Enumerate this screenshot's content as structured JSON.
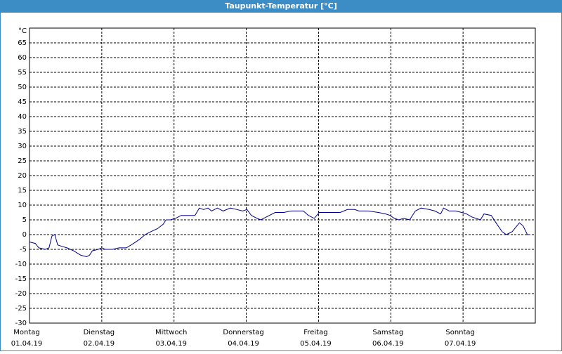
{
  "chart_data": {
    "type": "line",
    "title": "Taupunkt-Temperatur [°C]",
    "y_unit": "°C",
    "xlim": [
      0,
      7
    ],
    "ylim": [
      -30,
      70
    ],
    "yticks": [
      -30,
      -25,
      -20,
      -15,
      -10,
      -5,
      0,
      5,
      10,
      15,
      20,
      25,
      30,
      35,
      40,
      45,
      50,
      55,
      60,
      65
    ],
    "xticks": [
      {
        "value": 0,
        "label": "Montag",
        "date": "01.04.19"
      },
      {
        "value": 1,
        "label": "Dienstag",
        "date": "02.04.19"
      },
      {
        "value": 2,
        "label": "Mittwoch",
        "date": "03.04.19"
      },
      {
        "value": 3,
        "label": "Donnerstag",
        "date": "04.04.19"
      },
      {
        "value": 4,
        "label": "Freitag",
        "date": "05.04.19"
      },
      {
        "value": 5,
        "label": "Samstag",
        "date": "06.04.19"
      },
      {
        "value": 6,
        "label": "Sonntag",
        "date": "07.04.19"
      }
    ],
    "grid": true,
    "x": [
      0,
      0.08,
      0.13,
      0.22,
      0.27,
      0.31,
      0.35,
      0.39,
      0.45,
      0.52,
      0.61,
      0.71,
      0.79,
      0.83,
      0.87,
      0.95,
      1.0,
      1.05,
      1.15,
      1.24,
      1.34,
      1.44,
      1.53,
      1.6,
      1.68,
      1.77,
      1.85,
      1.89,
      1.95,
      2.02,
      2.1,
      2.21,
      2.29,
      2.35,
      2.41,
      2.47,
      2.52,
      2.6,
      2.68,
      2.78,
      2.87,
      2.95,
      3.01,
      3.07,
      3.15,
      3.2,
      3.28,
      3.4,
      3.52,
      3.62,
      3.72,
      3.79,
      3.86,
      3.94,
      4.01,
      4.16,
      4.3,
      4.4,
      4.5,
      4.56,
      4.69,
      4.83,
      4.93,
      4.99,
      5.05,
      5.11,
      5.18,
      5.26,
      5.34,
      5.42,
      5.53,
      5.61,
      5.69,
      5.73,
      5.81,
      5.9,
      5.98,
      6.05,
      6.12,
      6.24,
      6.29,
      6.39,
      6.47,
      6.54,
      6.6,
      6.68,
      6.78,
      6.83,
      6.89,
      6.93
    ],
    "series": [
      {
        "color": "#00008b",
        "values": [
          -2.5,
          -3,
          -4.5,
          -5,
          -4.5,
          -0.5,
          0,
          -3.5,
          -4,
          -4.5,
          -5.5,
          -7,
          -7.5,
          -7,
          -5.5,
          -5,
          -4.5,
          -5,
          -5,
          -4.5,
          -4.5,
          -3,
          -1.5,
          0,
          1,
          2,
          3.5,
          5,
          5,
          5.5,
          6.5,
          6.5,
          6.5,
          9,
          8.5,
          9,
          8,
          9,
          8,
          9,
          8.5,
          8,
          8.5,
          6.5,
          5.5,
          5,
          6,
          7.5,
          7.5,
          8,
          8,
          8,
          6.5,
          5.5,
          7.5,
          7.5,
          7.5,
          8.5,
          8.5,
          8,
          8,
          7.5,
          7,
          6.5,
          5.5,
          5,
          5.5,
          5,
          8,
          9,
          8.5,
          8,
          7,
          9,
          8,
          8,
          7.5,
          7,
          6,
          5,
          7,
          6.5,
          3.5,
          1,
          0,
          1,
          4,
          3,
          0,
          0
        ]
      }
    ]
  }
}
